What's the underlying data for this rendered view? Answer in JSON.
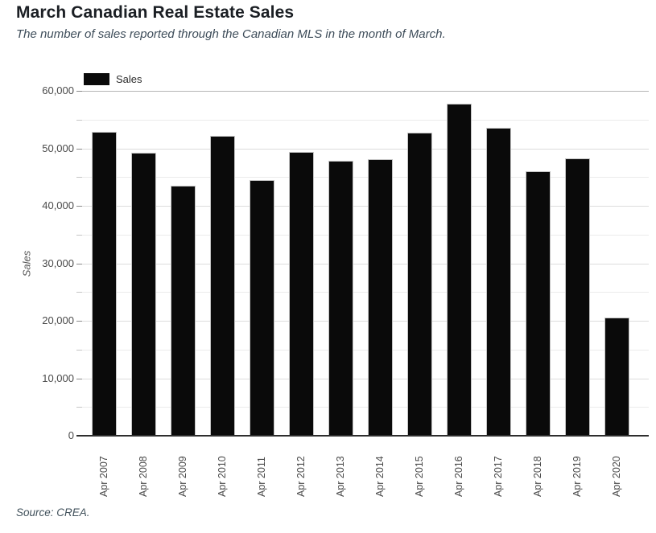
{
  "chart_data": {
    "type": "bar",
    "title": "March Canadian Real Estate Sales",
    "subtitle": "The number of sales reported through the Canadian MLS in the month of March.",
    "source": "Source: CREA.",
    "ylabel": "Sales",
    "xlabel": "",
    "legend": [
      "Sales"
    ],
    "legend_position": "top-left",
    "categories": [
      "Apr 2007",
      "Apr 2008",
      "Apr 2009",
      "Apr 2010",
      "Apr 2011",
      "Apr 2012",
      "Apr 2013",
      "Apr 2014",
      "Apr 2015",
      "Apr 2016",
      "Apr 2017",
      "Apr 2018",
      "Apr 2019",
      "Apr 2020"
    ],
    "values": [
      52900,
      49200,
      43500,
      52200,
      44500,
      49400,
      47800,
      48100,
      52700,
      57800,
      53500,
      46000,
      48300,
      20600
    ],
    "ylim": [
      0,
      60000
    ],
    "ytick_label_step": 10000,
    "ytick_grid_step": 5000,
    "grid_on": true
  },
  "colors": {
    "bar": "#0a0a0a",
    "title_text": "#1b1f24",
    "subtitle_text": "#3e4d5a",
    "axis_text": "#4a4a4a",
    "gridline_top": "#b5b5b5",
    "gridline_major": "#dcdcdc",
    "gridline_minor": "#ebebeb",
    "baseline": "#2e2e2e",
    "background": "#ffffff"
  }
}
